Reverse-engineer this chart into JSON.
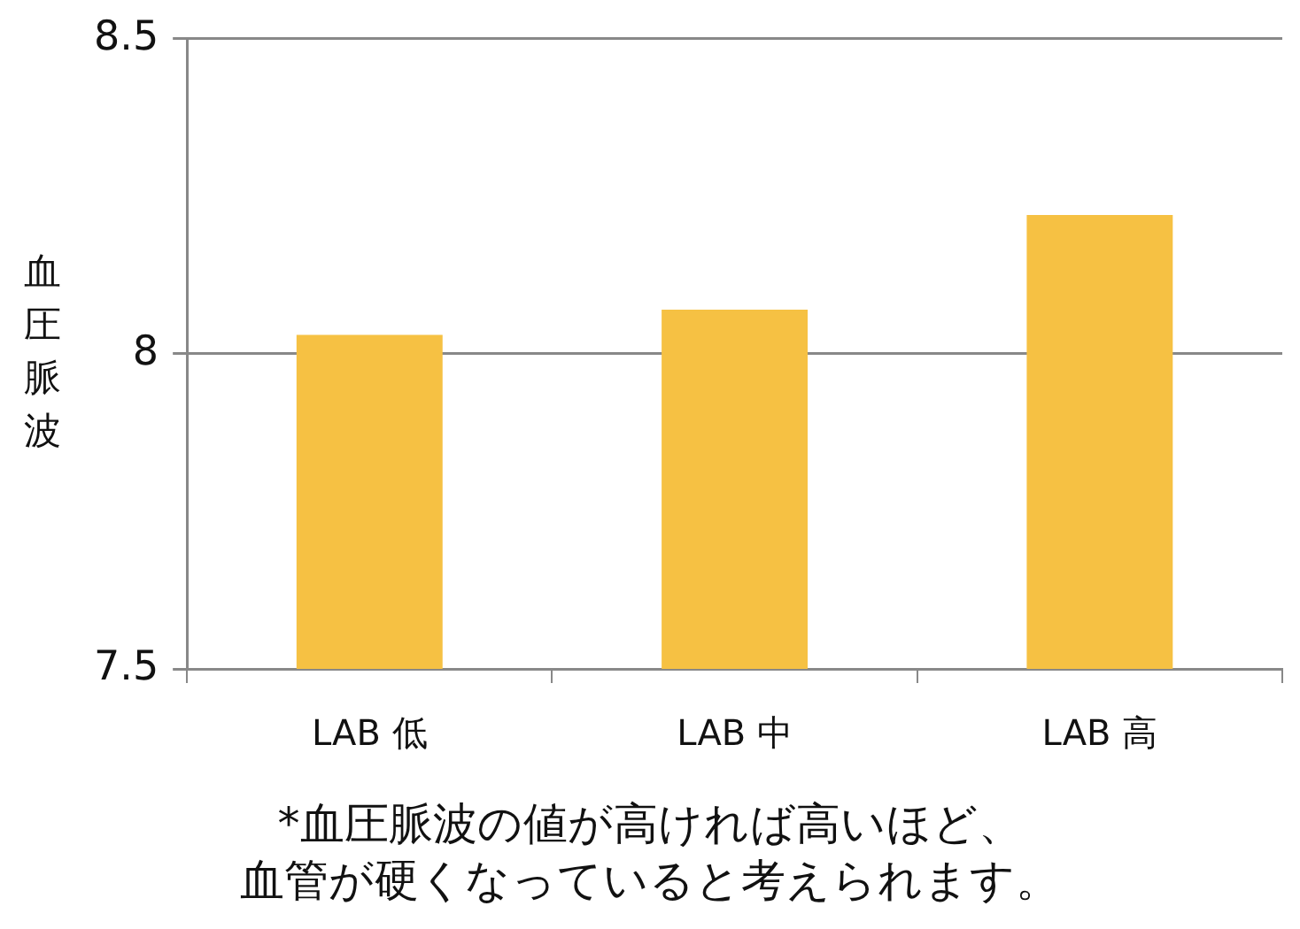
{
  "chart_data": {
    "type": "bar",
    "ylabel": "血圧脈波",
    "categories": [
      "LAB 低",
      "LAB 中",
      "LAB 高"
    ],
    "values": [
      8.03,
      8.07,
      8.22
    ],
    "color": "#f6c143",
    "ylim": [
      7.5,
      8.5
    ],
    "yticks": [
      7.5,
      8,
      8.5
    ],
    "grid": "y",
    "legend": false,
    "annotations": [
      "*血圧脈波の値が高ければ高いほど、",
      "血管が硬くなっていると考えられます。"
    ]
  }
}
